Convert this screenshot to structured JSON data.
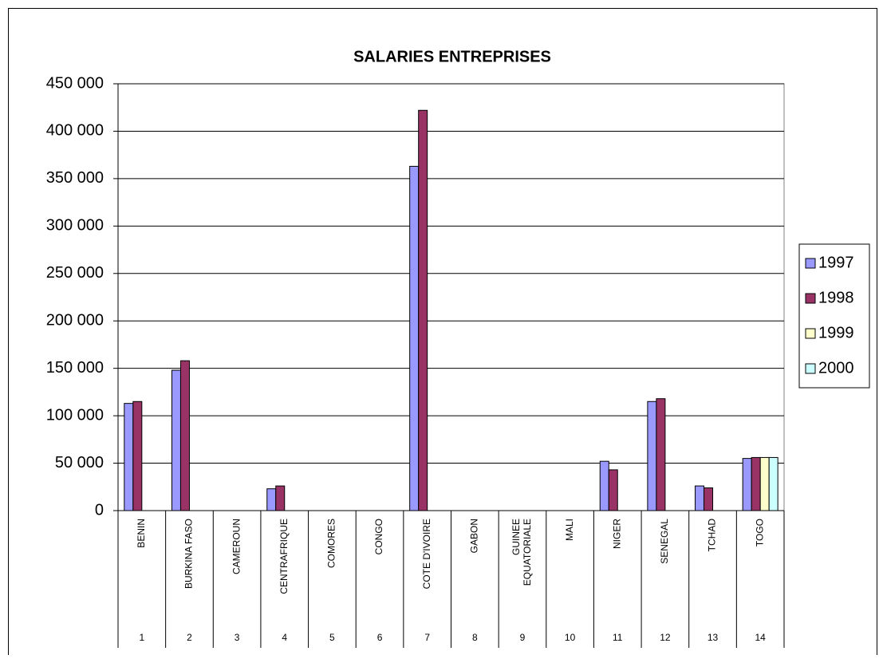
{
  "chart_data": {
    "type": "bar",
    "title": "SALARIES ENTREPRISES",
    "categories": [
      "BENIN",
      "BURKINA FASO",
      "CAMEROUN",
      "CENTRAFRIQUE",
      "COMORES",
      "CONGO",
      "COTE D'IVOIRE",
      "GABON",
      "GUINEE\nEQUATORIALE",
      "MALI",
      "NIGER",
      "SENEGAL",
      "TCHAD",
      "TOGO"
    ],
    "category_numbers": [
      "1",
      "2",
      "3",
      "4",
      "5",
      "6",
      "7",
      "8",
      "9",
      "10",
      "11",
      "12",
      "13",
      "14"
    ],
    "series": [
      {
        "name": "1997",
        "color": "#9999ff",
        "values": [
          113000,
          148000,
          null,
          23000,
          null,
          null,
          363000,
          null,
          null,
          null,
          52000,
          115000,
          26000,
          55000
        ]
      },
      {
        "name": "1998",
        "color": "#993366",
        "values": [
          115000,
          158000,
          null,
          26000,
          null,
          null,
          422000,
          null,
          null,
          null,
          43000,
          118000,
          24000,
          56000
        ]
      },
      {
        "name": "1999",
        "color": "#ffffcc",
        "values": [
          null,
          null,
          null,
          null,
          null,
          null,
          null,
          null,
          null,
          null,
          null,
          null,
          null,
          56000
        ]
      },
      {
        "name": "2000",
        "color": "#ccffff",
        "values": [
          null,
          null,
          null,
          null,
          null,
          null,
          null,
          null,
          null,
          null,
          null,
          null,
          null,
          56000
        ]
      }
    ],
    "ylim": [
      0,
      450000
    ],
    "yticks": [
      0,
      {
        "value": 50000,
        "label": "50 000"
      },
      {
        "value": 100000,
        "label": "100 000"
      },
      {
        "value": 150000,
        "label": "150 000"
      },
      {
        "value": 200000,
        "label": "200 000"
      },
      {
        "value": 250000,
        "label": "250 000"
      },
      {
        "value": 300000,
        "label": "300 000"
      },
      {
        "value": 350000,
        "label": "350 000"
      },
      {
        "value": 400000,
        "label": "400 000"
      },
      {
        "value": 450000,
        "label": "450 000"
      }
    ],
    "grid": true,
    "legend": "right"
  }
}
